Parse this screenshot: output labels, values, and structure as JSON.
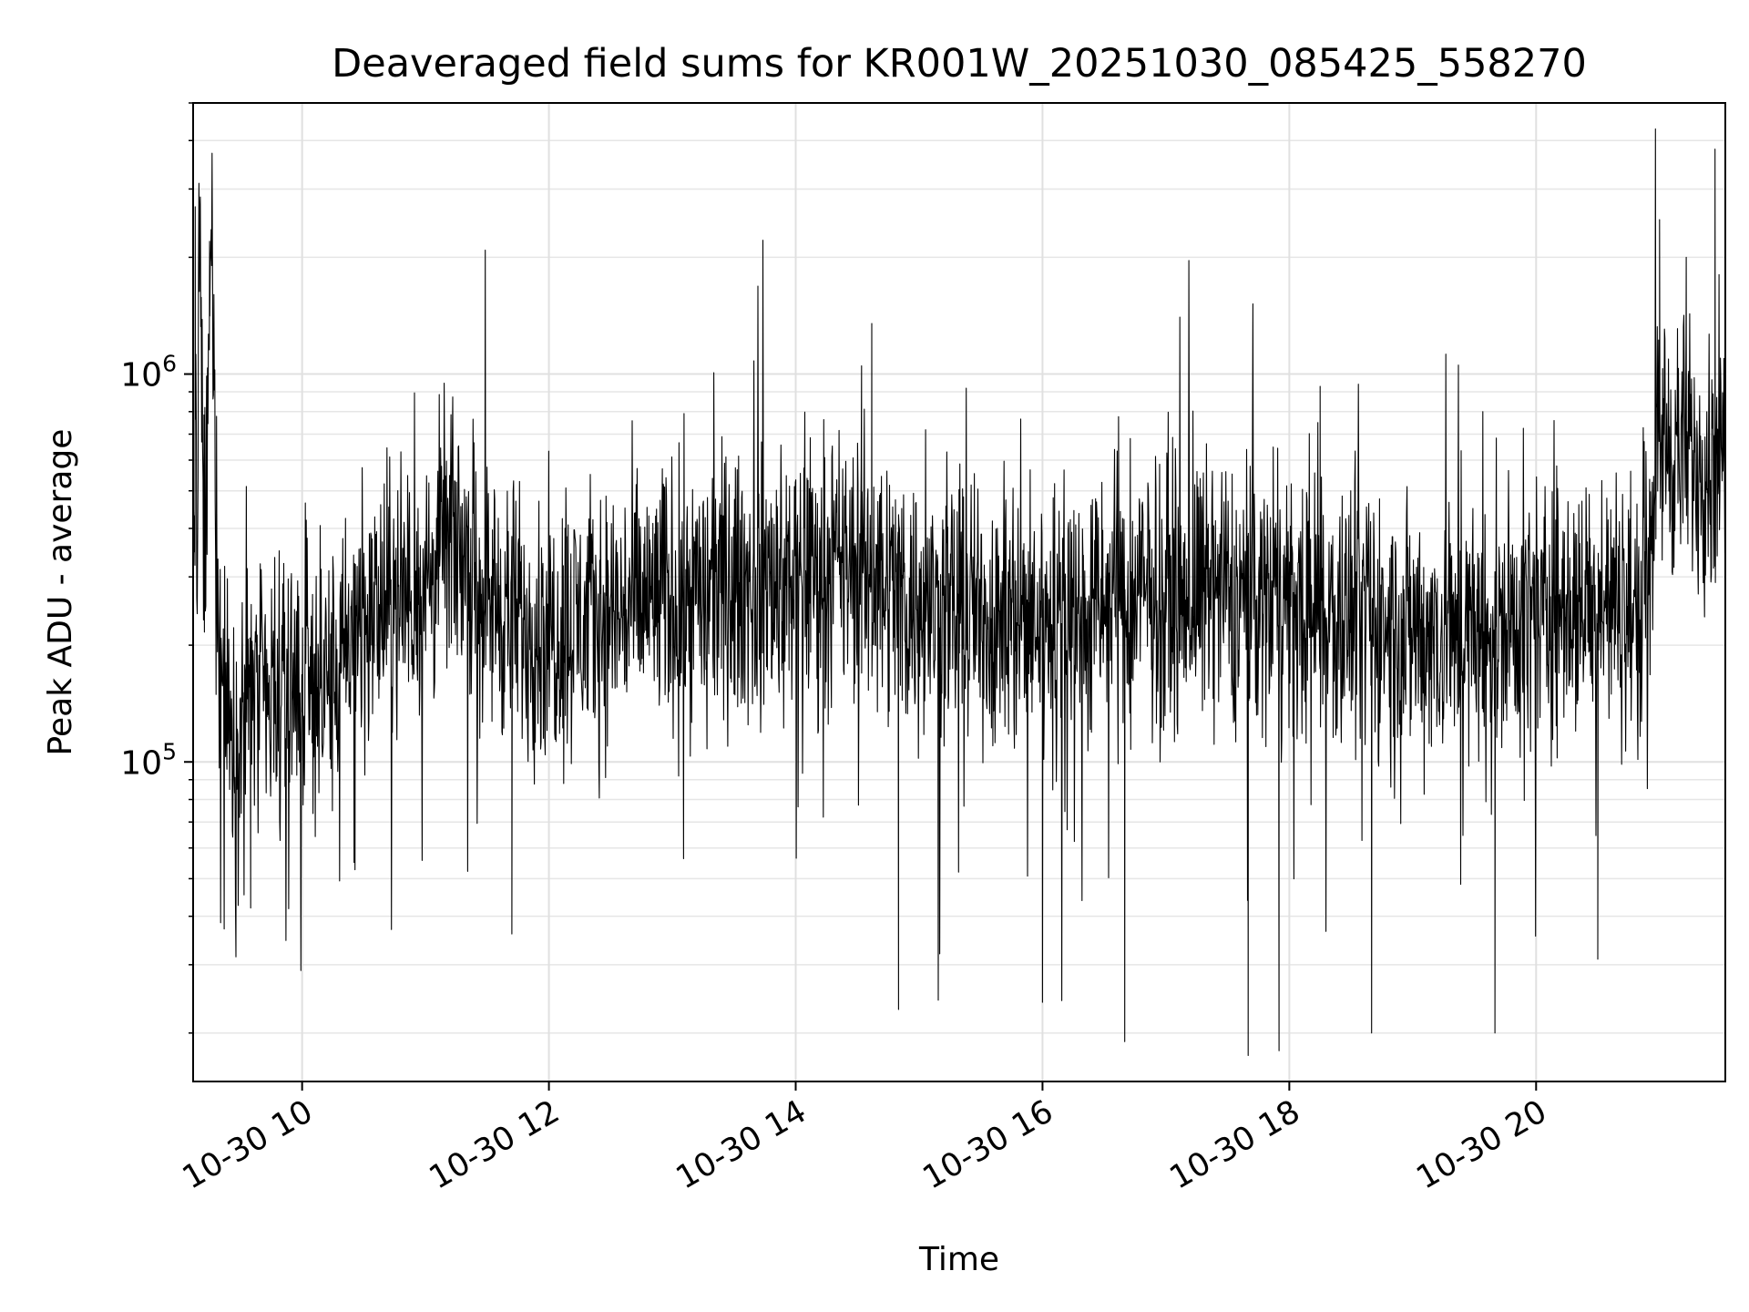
{
  "chart_data": {
    "type": "line",
    "title": "Deaveraged field sums for KR001W_20251030_085425_558270",
    "xlabel": "Time",
    "ylabel": "Peak ADU - average",
    "xlim": [
      "2025-10-30 09:07",
      "2025-10-30 21:32"
    ],
    "ylim": [
      15000,
      5000000
    ],
    "yscale": "log",
    "grid": true,
    "grid_minor": true,
    "line_color": "#000000",
    "x_ticks": [
      {
        "value": "2025-10-30 10:00",
        "label": "10-30 10"
      },
      {
        "value": "2025-10-30 12:00",
        "label": "10-30 12"
      },
      {
        "value": "2025-10-30 14:00",
        "label": "10-30 14"
      },
      {
        "value": "2025-10-30 16:00",
        "label": "10-30 16"
      },
      {
        "value": "2025-10-30 18:00",
        "label": "10-30 18"
      },
      {
        "value": "2025-10-30 20:00",
        "label": "10-30 20"
      }
    ],
    "y_ticks": [
      {
        "value": 100000,
        "base": "10",
        "exp": "5"
      },
      {
        "value": 1000000,
        "base": "10",
        "exp": "6"
      }
    ],
    "series": [
      {
        "x": [
          "2025-10-30 09:07",
          "2025-10-30 09:08",
          "2025-10-30 09:09",
          "2025-10-30 09:10",
          "2025-10-30 09:12",
          "2025-10-30 09:14",
          "2025-10-30 09:16",
          "2025-10-30 09:18",
          "2025-10-30 09:20",
          "2025-10-30 09:24",
          "2025-10-30 09:28",
          "2025-10-30 09:32",
          "2025-10-30 09:36",
          "2025-10-30 09:40",
          "2025-10-30 09:48",
          "2025-10-30 09:55",
          "2025-10-30 10:05",
          "2025-10-30 10:15",
          "2025-10-30 10:30",
          "2025-10-30 10:45",
          "2025-10-30 11:00",
          "2025-10-30 11:10",
          "2025-10-30 11:20",
          "2025-10-30 11:30",
          "2025-10-30 11:45",
          "2025-10-30 12:00",
          "2025-10-30 12:30",
          "2025-10-30 13:00",
          "2025-10-30 13:30",
          "2025-10-30 14:00",
          "2025-10-30 14:20",
          "2025-10-30 14:40",
          "2025-10-30 15:00",
          "2025-10-30 15:30",
          "2025-10-30 16:00",
          "2025-10-30 16:30",
          "2025-10-30 17:00",
          "2025-10-30 17:30",
          "2025-10-30 18:00",
          "2025-10-30 18:30",
          "2025-10-30 19:00",
          "2025-10-30 19:30",
          "2025-10-30 20:00",
          "2025-10-30 20:30",
          "2025-10-30 20:50",
          "2025-10-30 21:00",
          "2025-10-30 21:05",
          "2025-10-30 21:15",
          "2025-10-30 21:25",
          "2025-10-30 21:32"
        ],
        "y": [
          250000,
          900000,
          280000,
          2700000,
          350000,
          600000,
          2200000,
          450000,
          200000,
          130000,
          110000,
          150000,
          160000,
          140000,
          130000,
          150000,
          170000,
          160000,
          230000,
          260000,
          280000,
          380000,
          340000,
          270000,
          230000,
          220000,
          240000,
          270000,
          280000,
          300000,
          320000,
          310000,
          250000,
          240000,
          230000,
          250000,
          280000,
          270000,
          260000,
          230000,
          220000,
          210000,
          240000,
          260000,
          240000,
          700000,
          650000,
          620000,
          600000,
          650000
        ],
        "spikes_high": [
          {
            "x": "2025-10-30 09:08",
            "y": 2700000
          },
          {
            "x": "2025-10-30 09:15",
            "y": 2200000
          },
          {
            "x": "2025-10-30 14:37",
            "y": 1350000
          },
          {
            "x": "2025-10-30 14:32",
            "y": 1050000
          },
          {
            "x": "2025-10-30 18:15",
            "y": 930000
          },
          {
            "x": "2025-10-30 21:00",
            "y": 2500000
          },
          {
            "x": "2025-10-30 21:13",
            "y": 2000000
          },
          {
            "x": "2025-10-30 21:27",
            "y": 3800000
          }
        ],
        "spikes_low": [
          {
            "x": "2025-10-30 09:35",
            "y": 42000
          },
          {
            "x": "2025-10-30 11:42",
            "y": 36000
          },
          {
            "x": "2025-10-30 14:50",
            "y": 23000
          },
          {
            "x": "2025-10-30 15:10",
            "y": 32000
          },
          {
            "x": "2025-10-30 16:00",
            "y": 24000
          },
          {
            "x": "2025-10-30 16:40",
            "y": 19000
          },
          {
            "x": "2025-10-30 17:40",
            "y": 17500
          },
          {
            "x": "2025-10-30 17:55",
            "y": 18000
          },
          {
            "x": "2025-10-30 18:40",
            "y": 20000
          },
          {
            "x": "2025-10-30 19:40",
            "y": 20000
          },
          {
            "x": "2025-10-30 20:30",
            "y": 31000
          }
        ]
      }
    ]
  }
}
